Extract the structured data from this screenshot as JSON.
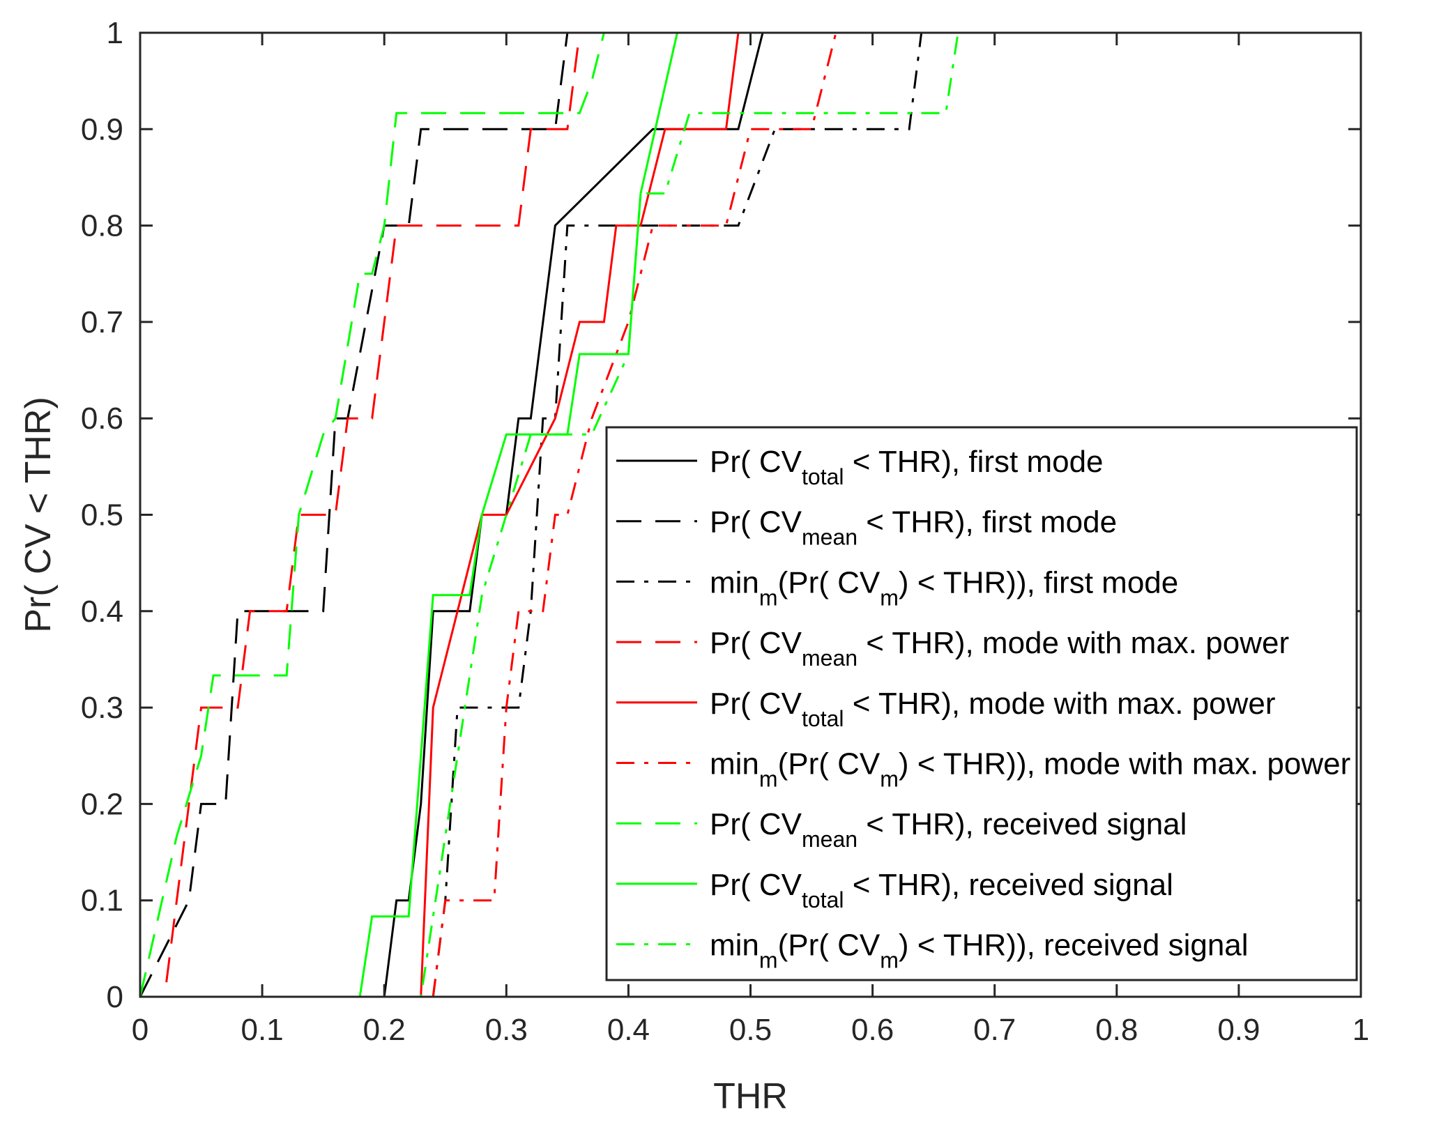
{
  "chart_data": {
    "type": "line",
    "title": "",
    "xlabel": "THR",
    "ylabel": "Pr( CV < THR)",
    "xlim": [
      0,
      1
    ],
    "ylim": [
      0,
      1
    ],
    "xticks": [
      "0",
      "0.1",
      "0.2",
      "0.3",
      "0.4",
      "0.5",
      "0.6",
      "0.7",
      "0.8",
      "0.9",
      "1"
    ],
    "yticks": [
      "0",
      "0.1",
      "0.2",
      "0.3",
      "0.4",
      "0.5",
      "0.6",
      "0.7",
      "0.8",
      "0.9",
      "1"
    ],
    "grid": false,
    "legend_position": "bottom-right",
    "colors": {
      "black": "#000000",
      "red": "#ff0000",
      "green": "#00ff00"
    },
    "series": [
      {
        "name": "total-first",
        "label": {
          "pre": "Pr( CV",
          "sub": "total",
          "post": " < THR), first mode"
        },
        "color": "#000000",
        "dash": "solid",
        "x": [
          0,
          0.2,
          0.21,
          0.22,
          0.23,
          0.24,
          0.27,
          0.28,
          0.29,
          0.3,
          0.31,
          0.32,
          0.34,
          0.42,
          0.49,
          0.51,
          1
        ],
        "y": [
          0,
          0,
          0.1,
          0.1,
          0.2,
          0.4,
          0.4,
          0.5,
          0.5,
          0.5,
          0.6,
          0.6,
          0.8,
          0.9,
          0.9,
          1,
          1
        ]
      },
      {
        "name": "mean-first",
        "label": {
          "pre": "Pr( CV",
          "sub": "mean",
          "post": " < THR), first mode"
        },
        "color": "#000000",
        "dash": "long",
        "x": [
          0,
          0.04,
          0.05,
          0.07,
          0.08,
          0.1,
          0.12,
          0.15,
          0.16,
          0.17,
          0.2,
          0.21,
          0.22,
          0.23,
          0.24,
          0.27,
          0.33,
          0.34,
          0.35,
          0.36,
          1
        ],
        "y": [
          0,
          0.1,
          0.2,
          0.2,
          0.4,
          0.4,
          0.4,
          0.4,
          0.6,
          0.6,
          0.8,
          0.8,
          0.8,
          0.9,
          0.9,
          0.9,
          0.9,
          0.9,
          1,
          1,
          1
        ]
      },
      {
        "name": "min-first",
        "label": {
          "pre": "min",
          "sub": "m",
          "post": "(Pr( CV",
          "sub2": "m",
          "post2": ") < THR)), first mode"
        },
        "color": "#000000",
        "dash": "dashdot",
        "x": [
          0,
          0.24,
          0.25,
          0.26,
          0.27,
          0.29,
          0.3,
          0.31,
          0.32,
          0.33,
          0.34,
          0.35,
          0.36,
          0.37,
          0.42,
          0.49,
          0.52,
          0.55,
          0.63,
          0.64,
          0.65,
          1
        ],
        "y": [
          0,
          0,
          0.1,
          0.3,
          0.3,
          0.3,
          0.3,
          0.3,
          0.4,
          0.6,
          0.6,
          0.8,
          0.8,
          0.8,
          0.8,
          0.8,
          0.9,
          0.9,
          0.9,
          1,
          1,
          1
        ]
      },
      {
        "name": "mean-maxpow",
        "label": {
          "pre": "Pr( CV",
          "sub": "mean",
          "post": " < THR), mode with max. power"
        },
        "color": "#ff0000",
        "dash": "long",
        "x": [
          0,
          0.02,
          0.05,
          0.07,
          0.08,
          0.09,
          0.11,
          0.12,
          0.13,
          0.16,
          0.17,
          0.19,
          0.21,
          0.22,
          0.31,
          0.32,
          0.35,
          0.36,
          0.37,
          1
        ],
        "y": [
          0,
          0,
          0.3,
          0.3,
          0.3,
          0.4,
          0.4,
          0.4,
          0.5,
          0.5,
          0.6,
          0.6,
          0.8,
          0.8,
          0.8,
          0.9,
          0.9,
          1,
          1,
          1
        ]
      },
      {
        "name": "total-maxpow",
        "label": {
          "pre": "Pr( CV",
          "sub": "total",
          "post": " < THR), mode with max. power"
        },
        "color": "#ff0000",
        "dash": "solid",
        "x": [
          0,
          0.23,
          0.24,
          0.26,
          0.28,
          0.3,
          0.34,
          0.36,
          0.38,
          0.39,
          0.41,
          0.43,
          0.48,
          0.49,
          1
        ],
        "y": [
          0,
          0,
          0.3,
          0.4,
          0.5,
          0.5,
          0.6,
          0.7,
          0.7,
          0.8,
          0.8,
          0.9,
          0.9,
          1,
          1
        ]
      },
      {
        "name": "min-maxpow",
        "label": {
          "pre": "min",
          "sub": "m",
          "post": "(Pr( CV",
          "sub2": "m",
          "post2": ") < THR)), mode with max. power"
        },
        "color": "#ff0000",
        "dash": "dashdot",
        "x": [
          0,
          0.24,
          0.25,
          0.29,
          0.3,
          0.31,
          0.33,
          0.34,
          0.35,
          0.37,
          0.4,
          0.42,
          0.48,
          0.5,
          0.55,
          0.57,
          1
        ],
        "y": [
          0,
          0,
          0.1,
          0.1,
          0.3,
          0.4,
          0.4,
          0.5,
          0.5,
          0.6,
          0.7,
          0.8,
          0.8,
          0.9,
          0.9,
          1,
          1
        ]
      },
      {
        "name": "mean-received",
        "label": {
          "pre": "Pr( CV",
          "sub": "mean",
          "post": " < THR), received signal"
        },
        "color": "#00ff00",
        "dash": "long",
        "x": [
          0,
          0.03,
          0.05,
          0.06,
          0.08,
          0.12,
          0.13,
          0.15,
          0.16,
          0.18,
          0.19,
          0.2,
          0.21,
          0.22,
          0.24,
          0.36,
          0.37,
          0.38,
          1
        ],
        "y": [
          0,
          0.1667,
          0.25,
          0.3333,
          0.3333,
          0.3333,
          0.5,
          0.5833,
          0.6,
          0.75,
          0.75,
          0.8,
          0.9167,
          0.9167,
          0.9167,
          0.9167,
          0.95,
          1,
          1
        ]
      },
      {
        "name": "total-received",
        "label": {
          "pre": "Pr( CV",
          "sub": "total",
          "post": " < THR), received signal"
        },
        "color": "#00ff00",
        "dash": "solid",
        "x": [
          0,
          0.18,
          0.19,
          0.22,
          0.24,
          0.27,
          0.28,
          0.3,
          0.35,
          0.36,
          0.4,
          0.41,
          0.44,
          1
        ],
        "y": [
          0,
          0,
          0.0833,
          0.0833,
          0.4167,
          0.4167,
          0.5,
          0.5833,
          0.5833,
          0.6667,
          0.6667,
          0.8333,
          1,
          1
        ]
      },
      {
        "name": "min-received",
        "label": {
          "pre": "min",
          "sub": "m",
          "post": "(Pr( CV",
          "sub2": "m",
          "post2": ") < THR)), received signal"
        },
        "color": "#00ff00",
        "dash": "dashdot",
        "x": [
          0,
          0.23,
          0.25,
          0.26,
          0.28,
          0.3,
          0.32,
          0.37,
          0.4,
          0.41,
          0.43,
          0.45,
          0.66,
          0.67,
          1
        ],
        "y": [
          0,
          0,
          0.1667,
          0.25,
          0.4167,
          0.5,
          0.5833,
          0.5833,
          0.6667,
          0.8333,
          0.8333,
          0.9167,
          0.9167,
          1,
          1
        ]
      }
    ]
  }
}
